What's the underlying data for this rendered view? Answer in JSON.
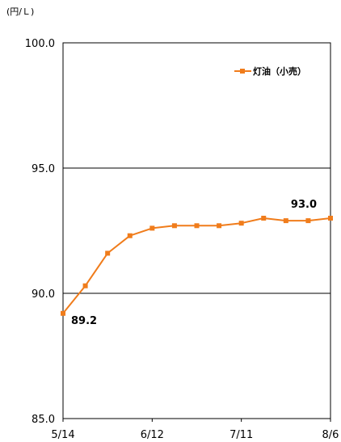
{
  "chart_data": {
    "type": "line",
    "unit_label": "(円/Ｌ)",
    "title": "",
    "xlabel": "",
    "ylabel": "",
    "ylim": [
      85.0,
      100.0
    ],
    "y_ticks": [
      "100.0",
      "95.0",
      "90.0",
      "85.0"
    ],
    "x_ticks": [
      "5/14",
      "6/12",
      "7/11",
      "8/6"
    ],
    "grid": "horizontal",
    "legend_position": "top-right",
    "series": [
      {
        "name": "灯油（小売）",
        "color": "#f07c1b",
        "values": [
          89.2,
          90.3,
          91.6,
          92.3,
          92.6,
          92.7,
          92.7,
          92.7,
          92.8,
          93.0,
          92.9,
          92.9,
          93.0
        ]
      }
    ],
    "annotations": [
      {
        "point_index": 0,
        "text": "89.2"
      },
      {
        "point_index": 12,
        "text": "93.0"
      }
    ]
  }
}
